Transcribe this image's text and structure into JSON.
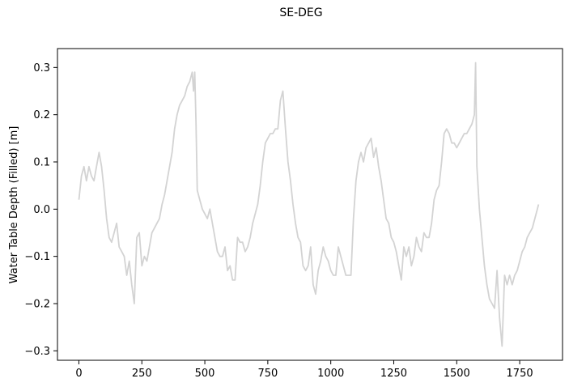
{
  "chart_data": {
    "type": "line",
    "title": "SE-DEG",
    "xlabel": "",
    "ylabel": "Water Table Depth (Filled) [m]",
    "xlim": [
      -85,
      1920
    ],
    "ylim": [
      -0.32,
      0.34
    ],
    "x_ticks": [
      0,
      250,
      500,
      750,
      1000,
      1250,
      1500,
      1750
    ],
    "y_ticks": [
      -0.3,
      -0.2,
      -0.1,
      0.0,
      0.1,
      0.2,
      0.3
    ],
    "x_tick_labels": [
      "0",
      "250",
      "500",
      "750",
      "1000",
      "1250",
      "1500",
      "1750"
    ],
    "y_tick_labels": [
      "−0.3",
      "−0.2",
      "−0.1",
      "0.0",
      "0.1",
      "0.2",
      "0.3"
    ],
    "grid": false,
    "line_color": "#d3d3d3",
    "series": [
      {
        "x": [
          0,
          10,
          20,
          30,
          40,
          50,
          60,
          70,
          80,
          90,
          100,
          110,
          120,
          130,
          140,
          150,
          160,
          170,
          180,
          190,
          200,
          210,
          220,
          230,
          240,
          250,
          260,
          270,
          280,
          290,
          300,
          310,
          320,
          330,
          340,
          350,
          360,
          370,
          380,
          390,
          400,
          410,
          420,
          430,
          440,
          450,
          455,
          460,
          465,
          470,
          480,
          490,
          500,
          510,
          520,
          530,
          540,
          550,
          560,
          570,
          580,
          590,
          600,
          610,
          620,
          630,
          640,
          650,
          660,
          670,
          680,
          690,
          700,
          710,
          720,
          730,
          740,
          750,
          760,
          770,
          780,
          790,
          800,
          810,
          820,
          830,
          840,
          850,
          860,
          870,
          880,
          890,
          900,
          910,
          920,
          930,
          940,
          950,
          960,
          970,
          980,
          990,
          1000,
          1010,
          1020,
          1030,
          1040,
          1050,
          1060,
          1070,
          1080,
          1090,
          1100,
          1110,
          1120,
          1130,
          1140,
          1150,
          1160,
          1170,
          1180,
          1190,
          1200,
          1210,
          1220,
          1230,
          1240,
          1250,
          1260,
          1270,
          1280,
          1290,
          1300,
          1310,
          1320,
          1330,
          1340,
          1350,
          1360,
          1370,
          1380,
          1390,
          1400,
          1410,
          1420,
          1430,
          1440,
          1450,
          1460,
          1470,
          1480,
          1490,
          1500,
          1510,
          1520,
          1530,
          1540,
          1550,
          1560,
          1570,
          1575,
          1580,
          1590,
          1600,
          1610,
          1620,
          1630,
          1640,
          1650,
          1660,
          1670,
          1680,
          1690,
          1700,
          1710,
          1720,
          1730,
          1740,
          1750,
          1760,
          1770,
          1780,
          1790,
          1800,
          1810,
          1820,
          1825
        ],
        "y": [
          0.02,
          0.07,
          0.09,
          0.06,
          0.09,
          0.07,
          0.06,
          0.09,
          0.12,
          0.09,
          0.04,
          -0.02,
          -0.06,
          -0.07,
          -0.05,
          -0.03,
          -0.08,
          -0.09,
          -0.1,
          -0.14,
          -0.11,
          -0.16,
          -0.2,
          -0.06,
          -0.05,
          -0.12,
          -0.1,
          -0.11,
          -0.08,
          -0.05,
          -0.04,
          -0.03,
          -0.02,
          0.01,
          0.03,
          0.06,
          0.09,
          0.12,
          0.17,
          0.2,
          0.22,
          0.23,
          0.24,
          0.26,
          0.27,
          0.29,
          0.25,
          0.29,
          0.18,
          0.04,
          0.02,
          0.0,
          -0.01,
          -0.02,
          0.0,
          -0.03,
          -0.06,
          -0.09,
          -0.1,
          -0.1,
          -0.08,
          -0.13,
          -0.12,
          -0.15,
          -0.15,
          -0.06,
          -0.07,
          -0.07,
          -0.09,
          -0.08,
          -0.06,
          -0.03,
          -0.01,
          0.01,
          0.05,
          0.1,
          0.14,
          0.15,
          0.16,
          0.16,
          0.17,
          0.17,
          0.23,
          0.25,
          0.17,
          0.1,
          0.06,
          0.01,
          -0.03,
          -0.06,
          -0.07,
          -0.12,
          -0.13,
          -0.12,
          -0.08,
          -0.16,
          -0.18,
          -0.13,
          -0.11,
          -0.08,
          -0.1,
          -0.11,
          -0.13,
          -0.14,
          -0.14,
          -0.08,
          -0.1,
          -0.12,
          -0.14,
          -0.14,
          -0.14,
          -0.02,
          0.06,
          0.1,
          0.12,
          0.1,
          0.13,
          0.14,
          0.15,
          0.11,
          0.13,
          0.09,
          0.06,
          0.02,
          -0.02,
          -0.03,
          -0.06,
          -0.07,
          -0.09,
          -0.12,
          -0.15,
          -0.08,
          -0.1,
          -0.08,
          -0.12,
          -0.1,
          -0.06,
          -0.08,
          -0.09,
          -0.05,
          -0.06,
          -0.06,
          -0.03,
          0.02,
          0.04,
          0.05,
          0.1,
          0.16,
          0.17,
          0.16,
          0.14,
          0.14,
          0.13,
          0.14,
          0.15,
          0.16,
          0.16,
          0.17,
          0.18,
          0.2,
          0.31,
          0.09,
          0.0,
          -0.06,
          -0.12,
          -0.16,
          -0.19,
          -0.2,
          -0.21,
          -0.13,
          -0.23,
          -0.29,
          -0.14,
          -0.16,
          -0.14,
          -0.16,
          -0.14,
          -0.13,
          -0.11,
          -0.09,
          -0.08,
          -0.06,
          -0.05,
          -0.04,
          -0.02,
          0.0,
          0.01
        ]
      }
    ]
  }
}
